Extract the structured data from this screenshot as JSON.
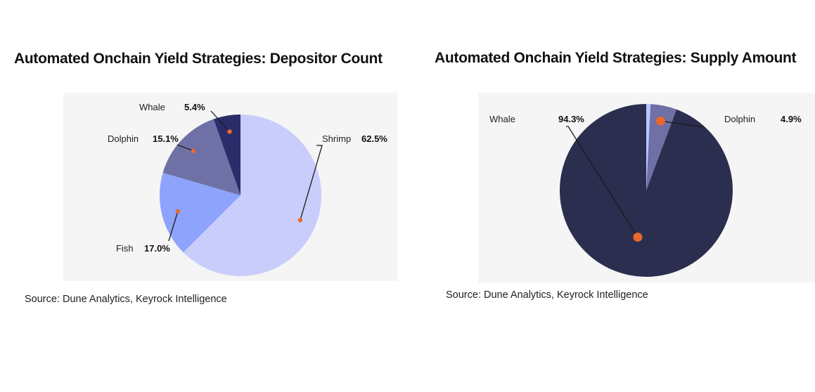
{
  "chart_data": [
    {
      "type": "pie",
      "title": "Automated Onchain Yield Strategies: Depositor Count",
      "slices": [
        {
          "label": "Shrimp",
          "value": 62.5,
          "value_label": "62.5%",
          "color": "#c8cdfb"
        },
        {
          "label": "Fish",
          "value": 17.0,
          "value_label": "17.0%",
          "color": "#8ea3fb"
        },
        {
          "label": "Dolphin",
          "value": 15.1,
          "value_label": "15.1%",
          "color": "#6e70a6"
        },
        {
          "label": "Whale",
          "value": 5.4,
          "value_label": "5.4%",
          "color": "#2b2c6a"
        }
      ],
      "source": "Source: Dune Analytics, Keyrock Intelligence"
    },
    {
      "type": "pie",
      "title": "Automated Onchain Yield Strategies: Supply Amount",
      "slices": [
        {
          "label": "",
          "value": 0.8,
          "value_label": "",
          "color": "#b8c6fc"
        },
        {
          "label": "Dolphin",
          "value": 4.9,
          "value_label": "4.9%",
          "color": "#6e70a6"
        },
        {
          "label": "Whale",
          "value": 94.3,
          "value_label": "94.3%",
          "color": "#2c2e50"
        }
      ],
      "source": "Source: Dune Analytics, Keyrock Intelligence"
    }
  ],
  "marker_color": "#e8692c"
}
